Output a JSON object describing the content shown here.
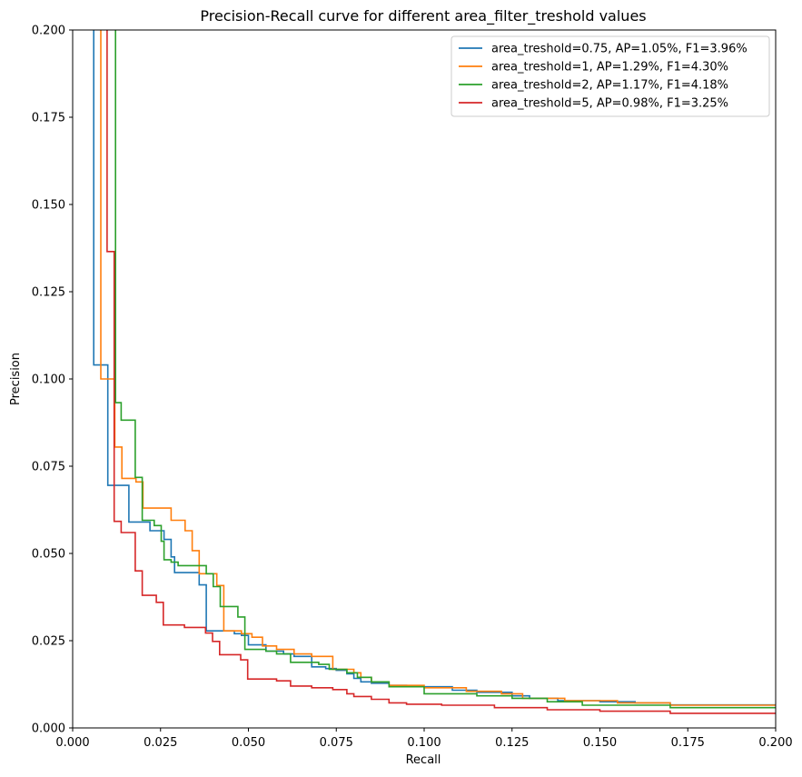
{
  "chart_data": {
    "type": "line",
    "title": "Precision-Recall curve for different area_filter_treshold values",
    "xlabel": "Recall",
    "ylabel": "Precision",
    "xlim": [
      0.0,
      0.2
    ],
    "ylim": [
      0.0,
      0.2
    ],
    "xticks": [
      "0.000",
      "0.025",
      "0.050",
      "0.075",
      "0.100",
      "0.125",
      "0.150",
      "0.175",
      "0.200"
    ],
    "yticks": [
      "0.000",
      "0.025",
      "0.050",
      "0.075",
      "0.100",
      "0.125",
      "0.150",
      "0.175",
      "0.200"
    ],
    "grid": false,
    "legend_position": "upper-right",
    "series": [
      {
        "name": "area_treshold=0.75, AP=1.05%, F1=3.96%",
        "color": "#1f77b4",
        "points": [
          [
            0.006,
            0.25
          ],
          [
            0.006,
            0.104
          ],
          [
            0.01,
            0.104
          ],
          [
            0.01,
            0.0695
          ],
          [
            0.016,
            0.0695
          ],
          [
            0.016,
            0.059
          ],
          [
            0.022,
            0.059
          ],
          [
            0.022,
            0.0565
          ],
          [
            0.026,
            0.0565
          ],
          [
            0.026,
            0.054
          ],
          [
            0.028,
            0.054
          ],
          [
            0.028,
            0.049
          ],
          [
            0.029,
            0.049
          ],
          [
            0.029,
            0.0445
          ],
          [
            0.036,
            0.0445
          ],
          [
            0.036,
            0.041
          ],
          [
            0.038,
            0.041
          ],
          [
            0.038,
            0.0278
          ],
          [
            0.046,
            0.0278
          ],
          [
            0.046,
            0.027
          ],
          [
            0.048,
            0.027
          ],
          [
            0.048,
            0.0265
          ],
          [
            0.05,
            0.0265
          ],
          [
            0.05,
            0.0238
          ],
          [
            0.055,
            0.0238
          ],
          [
            0.055,
            0.022
          ],
          [
            0.06,
            0.022
          ],
          [
            0.06,
            0.0212
          ],
          [
            0.063,
            0.0212
          ],
          [
            0.063,
            0.0205
          ],
          [
            0.068,
            0.0205
          ],
          [
            0.068,
            0.0175
          ],
          [
            0.072,
            0.0175
          ],
          [
            0.072,
            0.017
          ],
          [
            0.075,
            0.017
          ],
          [
            0.075,
            0.0165
          ],
          [
            0.078,
            0.0165
          ],
          [
            0.078,
            0.0155
          ],
          [
            0.08,
            0.0155
          ],
          [
            0.08,
            0.0142
          ],
          [
            0.082,
            0.0142
          ],
          [
            0.082,
            0.0132
          ],
          [
            0.085,
            0.0132
          ],
          [
            0.085,
            0.0128
          ],
          [
            0.09,
            0.0128
          ],
          [
            0.09,
            0.0122
          ],
          [
            0.095,
            0.0122
          ],
          [
            0.095,
            0.0118
          ],
          [
            0.108,
            0.0118
          ],
          [
            0.108,
            0.0108
          ],
          [
            0.115,
            0.0108
          ],
          [
            0.115,
            0.0102
          ],
          [
            0.125,
            0.0102
          ],
          [
            0.125,
            0.0092
          ],
          [
            0.13,
            0.0092
          ],
          [
            0.13,
            0.0085
          ],
          [
            0.138,
            0.0085
          ],
          [
            0.138,
            0.0078
          ],
          [
            0.15,
            0.0078
          ],
          [
            0.15,
            0.0075
          ],
          [
            0.16,
            0.0075
          ],
          [
            0.16,
            0.0072
          ],
          [
            0.17,
            0.0072
          ],
          [
            0.17,
            0.0066
          ],
          [
            0.2,
            0.0066
          ]
        ]
      },
      {
        "name": "area_treshold=1, AP=1.29%, F1=4.30%",
        "color": "#ff7f0e",
        "points": [
          [
            0.008,
            0.25
          ],
          [
            0.008,
            0.1
          ],
          [
            0.012,
            0.1
          ],
          [
            0.012,
            0.0805
          ],
          [
            0.014,
            0.0805
          ],
          [
            0.014,
            0.0715
          ],
          [
            0.018,
            0.0715
          ],
          [
            0.018,
            0.0705
          ],
          [
            0.02,
            0.0705
          ],
          [
            0.02,
            0.063
          ],
          [
            0.028,
            0.063
          ],
          [
            0.028,
            0.0595
          ],
          [
            0.032,
            0.0595
          ],
          [
            0.032,
            0.0565
          ],
          [
            0.034,
            0.0565
          ],
          [
            0.034,
            0.0508
          ],
          [
            0.036,
            0.0508
          ],
          [
            0.036,
            0.0442
          ],
          [
            0.041,
            0.0442
          ],
          [
            0.041,
            0.0408
          ],
          [
            0.043,
            0.0408
          ],
          [
            0.043,
            0.0278
          ],
          [
            0.048,
            0.0278
          ],
          [
            0.048,
            0.027
          ],
          [
            0.051,
            0.027
          ],
          [
            0.051,
            0.026
          ],
          [
            0.054,
            0.026
          ],
          [
            0.054,
            0.0235
          ],
          [
            0.058,
            0.0235
          ],
          [
            0.058,
            0.0225
          ],
          [
            0.063,
            0.0225
          ],
          [
            0.063,
            0.0212
          ],
          [
            0.068,
            0.0212
          ],
          [
            0.068,
            0.0205
          ],
          [
            0.074,
            0.0205
          ],
          [
            0.074,
            0.0168
          ],
          [
            0.08,
            0.0168
          ],
          [
            0.08,
            0.0158
          ],
          [
            0.082,
            0.0158
          ],
          [
            0.082,
            0.0145
          ],
          [
            0.085,
            0.0145
          ],
          [
            0.085,
            0.0132
          ],
          [
            0.09,
            0.0132
          ],
          [
            0.09,
            0.0122
          ],
          [
            0.1,
            0.0122
          ],
          [
            0.1,
            0.0115
          ],
          [
            0.112,
            0.0115
          ],
          [
            0.112,
            0.0105
          ],
          [
            0.122,
            0.0105
          ],
          [
            0.122,
            0.0098
          ],
          [
            0.128,
            0.0098
          ],
          [
            0.128,
            0.0085
          ],
          [
            0.14,
            0.0085
          ],
          [
            0.14,
            0.0078
          ],
          [
            0.155,
            0.0078
          ],
          [
            0.155,
            0.0072
          ],
          [
            0.17,
            0.0072
          ],
          [
            0.17,
            0.0065
          ],
          [
            0.2,
            0.0065
          ]
        ]
      },
      {
        "name": "area_treshold=2, AP=1.17%, F1=4.18%",
        "color": "#2ca02c",
        "points": [
          [
            0.0122,
            0.25
          ],
          [
            0.0122,
            0.0932
          ],
          [
            0.0138,
            0.0932
          ],
          [
            0.0138,
            0.0882
          ],
          [
            0.0178,
            0.0882
          ],
          [
            0.0178,
            0.0718
          ],
          [
            0.0198,
            0.0718
          ],
          [
            0.0198,
            0.0595
          ],
          [
            0.0232,
            0.0595
          ],
          [
            0.0232,
            0.058
          ],
          [
            0.0252,
            0.058
          ],
          [
            0.0252,
            0.0535
          ],
          [
            0.026,
            0.0535
          ],
          [
            0.026,
            0.0482
          ],
          [
            0.028,
            0.0482
          ],
          [
            0.028,
            0.0475
          ],
          [
            0.03,
            0.0475
          ],
          [
            0.03,
            0.0465
          ],
          [
            0.038,
            0.0465
          ],
          [
            0.038,
            0.0442
          ],
          [
            0.04,
            0.0442
          ],
          [
            0.04,
            0.0405
          ],
          [
            0.042,
            0.0405
          ],
          [
            0.042,
            0.0348
          ],
          [
            0.047,
            0.0348
          ],
          [
            0.047,
            0.0318
          ],
          [
            0.049,
            0.0318
          ],
          [
            0.049,
            0.0225
          ],
          [
            0.055,
            0.0225
          ],
          [
            0.055,
            0.022
          ],
          [
            0.058,
            0.022
          ],
          [
            0.058,
            0.0212
          ],
          [
            0.062,
            0.0212
          ],
          [
            0.062,
            0.0188
          ],
          [
            0.07,
            0.0188
          ],
          [
            0.07,
            0.0182
          ],
          [
            0.073,
            0.0182
          ],
          [
            0.073,
            0.0168
          ],
          [
            0.078,
            0.0168
          ],
          [
            0.078,
            0.0158
          ],
          [
            0.081,
            0.0158
          ],
          [
            0.081,
            0.0145
          ],
          [
            0.085,
            0.0145
          ],
          [
            0.085,
            0.0132
          ],
          [
            0.09,
            0.0132
          ],
          [
            0.09,
            0.0118
          ],
          [
            0.1,
            0.0118
          ],
          [
            0.1,
            0.0098
          ],
          [
            0.115,
            0.0098
          ],
          [
            0.115,
            0.0092
          ],
          [
            0.125,
            0.0092
          ],
          [
            0.125,
            0.0085
          ],
          [
            0.135,
            0.0085
          ],
          [
            0.135,
            0.0075
          ],
          [
            0.145,
            0.0075
          ],
          [
            0.145,
            0.0065
          ],
          [
            0.17,
            0.0065
          ],
          [
            0.17,
            0.0058
          ],
          [
            0.2,
            0.0058
          ]
        ]
      },
      {
        "name": "area_treshold=5, AP=0.98%, F1=3.25%",
        "color": "#d62728",
        "points": [
          [
            0.0098,
            0.25
          ],
          [
            0.0098,
            0.1365
          ],
          [
            0.0118,
            0.1365
          ],
          [
            0.0118,
            0.0592
          ],
          [
            0.0138,
            0.0592
          ],
          [
            0.0138,
            0.056
          ],
          [
            0.0178,
            0.056
          ],
          [
            0.0178,
            0.045
          ],
          [
            0.0198,
            0.045
          ],
          [
            0.0198,
            0.038
          ],
          [
            0.0238,
            0.038
          ],
          [
            0.0238,
            0.036
          ],
          [
            0.0258,
            0.036
          ],
          [
            0.0258,
            0.0295
          ],
          [
            0.0318,
            0.0295
          ],
          [
            0.0318,
            0.0288
          ],
          [
            0.0378,
            0.0288
          ],
          [
            0.0378,
            0.0272
          ],
          [
            0.0398,
            0.0272
          ],
          [
            0.0398,
            0.0248
          ],
          [
            0.0418,
            0.0248
          ],
          [
            0.0418,
            0.021
          ],
          [
            0.0478,
            0.021
          ],
          [
            0.0478,
            0.0195
          ],
          [
            0.0498,
            0.0195
          ],
          [
            0.0498,
            0.014
          ],
          [
            0.058,
            0.014
          ],
          [
            0.058,
            0.0135
          ],
          [
            0.062,
            0.0135
          ],
          [
            0.062,
            0.012
          ],
          [
            0.068,
            0.012
          ],
          [
            0.068,
            0.0115
          ],
          [
            0.074,
            0.0115
          ],
          [
            0.074,
            0.011
          ],
          [
            0.078,
            0.011
          ],
          [
            0.078,
            0.0098
          ],
          [
            0.08,
            0.0098
          ],
          [
            0.08,
            0.009
          ],
          [
            0.085,
            0.009
          ],
          [
            0.085,
            0.0082
          ],
          [
            0.09,
            0.0082
          ],
          [
            0.09,
            0.0072
          ],
          [
            0.095,
            0.0072
          ],
          [
            0.095,
            0.0068
          ],
          [
            0.105,
            0.0068
          ],
          [
            0.105,
            0.0065
          ],
          [
            0.12,
            0.0065
          ],
          [
            0.12,
            0.0058
          ],
          [
            0.135,
            0.0058
          ],
          [
            0.135,
            0.0052
          ],
          [
            0.15,
            0.0052
          ],
          [
            0.15,
            0.0048
          ],
          [
            0.17,
            0.0048
          ],
          [
            0.17,
            0.0042
          ],
          [
            0.2,
            0.0042
          ]
        ]
      }
    ]
  }
}
